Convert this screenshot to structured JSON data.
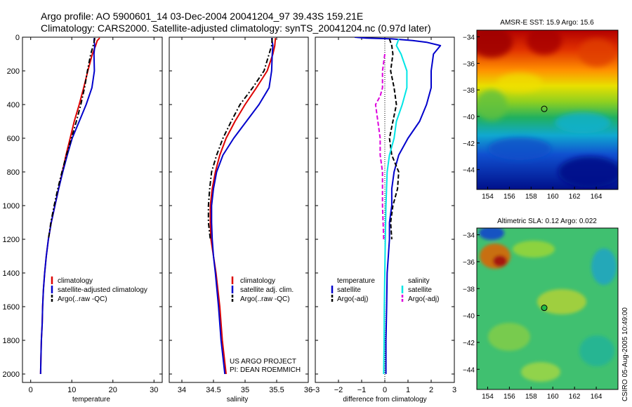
{
  "title_line1": "Argo profile: AO 5900601_14 03-Dec-2004 20041204_97 39.43S 159.21E",
  "title_line2": "Climatology: CARS2000. Satellite-adjusted climatology: synTS_20041204.nc (0.97d later)",
  "colors": {
    "climatology": "#dd0000",
    "satellite": "#0000cc",
    "argo": "#000000",
    "cyan": "#00e5e5",
    "magenta": "#dd00dd"
  },
  "chart_data": [
    {
      "type": "line",
      "xlabel": "temperature",
      "ylabel": "",
      "xlim": [
        -2,
        32
      ],
      "ylim": [
        0,
        2050
      ],
      "y_inverted": true,
      "xticks": [
        0,
        10,
        20,
        30
      ],
      "yticks": [
        0,
        200,
        400,
        600,
        800,
        1000,
        1200,
        1400,
        1600,
        1800,
        2000
      ],
      "legend": [
        "climatology",
        "satellite-adjusted climatology",
        "Argo(..raw -QC)"
      ],
      "series": [
        {
          "name": "climatology",
          "color": "#dd0000",
          "dash": "solid",
          "depth": [
            5,
            20,
            50,
            100,
            200,
            300,
            400,
            500,
            600,
            700,
            800,
            900,
            1000,
            1100,
            1200,
            1300,
            1400,
            1500,
            1600,
            1700,
            1800,
            1900,
            2000
          ],
          "values": [
            16.8,
            16.2,
            15.8,
            15.0,
            13.9,
            12.9,
            11.8,
            10.6,
            9.6,
            8.6,
            7.7,
            6.8,
            5.9,
            5.0,
            4.3,
            3.8,
            3.4,
            3.1,
            2.9,
            2.8,
            2.6,
            2.5,
            2.4
          ]
        },
        {
          "name": "satellite-adjusted climatology",
          "color": "#0000cc",
          "dash": "solid",
          "depth": [
            5,
            20,
            50,
            100,
            200,
            300,
            400,
            500,
            600,
            700,
            800,
            900,
            1000,
            1100,
            1200,
            1300,
            1400,
            1500,
            1600,
            1700,
            1800,
            1900,
            2000
          ],
          "values": [
            15.5,
            15.4,
            15.6,
            15.4,
            15.5,
            14.9,
            13.5,
            11.8,
            10.1,
            8.9,
            7.8,
            6.8,
            5.9,
            5.0,
            4.3,
            3.8,
            3.4,
            3.1,
            2.9,
            2.8,
            2.6,
            2.5,
            2.4
          ]
        },
        {
          "name": "Argo(..raw -QC)",
          "color": "#000000",
          "dash": "dashdot",
          "depth": [
            5,
            20,
            50,
            100,
            200,
            300,
            400,
            500,
            600,
            700,
            800,
            900,
            1000,
            1100,
            1200
          ],
          "values": [
            15.6,
            15.5,
            15.2,
            14.6,
            13.8,
            13.1,
            12.2,
            11.1,
            9.9,
            8.7,
            7.6,
            6.6,
            5.7,
            4.9,
            4.3
          ]
        }
      ]
    },
    {
      "type": "line",
      "xlabel": "salinity",
      "ylabel": "",
      "xlim": [
        33.8,
        36.0
      ],
      "ylim": [
        0,
        2050
      ],
      "y_inverted": true,
      "xticks": [
        34,
        34.5,
        35,
        35.5,
        36
      ],
      "legend": [
        "climatology",
        "satellite adj. clim.",
        "Argo(..raw -QC)"
      ],
      "annotations": [
        "US ARGO PROJECT",
        "PI: DEAN ROEMMICH"
      ],
      "series": [
        {
          "name": "climatology",
          "color": "#dd0000",
          "dash": "solid",
          "depth": [
            5,
            50,
            100,
            200,
            300,
            400,
            500,
            600,
            700,
            800,
            900,
            1000,
            1100,
            1200,
            1300,
            1400,
            1600,
            1800,
            2000
          ],
          "values": [
            35.48,
            35.47,
            35.44,
            35.35,
            35.18,
            35.0,
            34.84,
            34.7,
            34.6,
            34.53,
            34.48,
            34.45,
            34.45,
            34.46,
            34.5,
            34.54,
            34.6,
            34.64,
            34.7
          ]
        },
        {
          "name": "satellite adj. clim.",
          "color": "#0000cc",
          "dash": "solid",
          "depth": [
            5,
            50,
            100,
            200,
            300,
            400,
            500,
            600,
            700,
            800,
            900,
            1000,
            1100,
            1200,
            1300,
            1400,
            1600,
            1800,
            2000
          ],
          "values": [
            35.42,
            35.44,
            35.43,
            35.42,
            35.38,
            35.22,
            35.02,
            34.82,
            34.65,
            34.55,
            34.5,
            34.47,
            34.47,
            34.48,
            34.5,
            34.53,
            34.58,
            34.62,
            34.68
          ]
        },
        {
          "name": "Argo(..raw -QC)",
          "color": "#000000",
          "dash": "dashdot",
          "depth": [
            5,
            50,
            100,
            200,
            300,
            400,
            500,
            600,
            700,
            800,
            900,
            1000,
            1100,
            1200
          ],
          "values": [
            35.43,
            35.42,
            35.38,
            35.3,
            35.12,
            34.92,
            34.78,
            34.65,
            34.55,
            34.47,
            34.44,
            34.42,
            34.42,
            34.45
          ]
        }
      ]
    },
    {
      "type": "line",
      "xlabel": "difference from climatology",
      "ylabel": "",
      "xlim": [
        -3,
        3
      ],
      "ylim": [
        0,
        2050
      ],
      "y_inverted": true,
      "xticks": [
        -3,
        -2,
        -1,
        0,
        1,
        2,
        3
      ],
      "legend_temperature_header": "temperature",
      "legend_salinity_header": "salinity",
      "legend": [
        "satellite",
        "Argo(-adj)",
        "satellite",
        "Argo(-adj)"
      ],
      "series": [
        {
          "name": "temperature satellite",
          "color": "#0000cc",
          "dash": "solid",
          "depth": [
            0,
            5,
            10,
            20,
            30,
            50,
            100,
            200,
            300,
            400,
            500,
            600,
            700,
            800,
            900,
            1000,
            1100,
            1200,
            1300,
            1400,
            1600,
            1800,
            2000
          ],
          "values": [
            -1.3,
            -0.8,
            0.3,
            1.2,
            1.8,
            2.4,
            2.1,
            2.0,
            2.0,
            1.8,
            1.5,
            1.0,
            0.6,
            0.4,
            0.3,
            0.3,
            0.2,
            0.2,
            0.15,
            0.1,
            0.08,
            0.05,
            0.05
          ]
        },
        {
          "name": "temperature Argo(-adj)",
          "color": "#000000",
          "dash": "dashed",
          "depth": [
            10,
            50,
            100,
            200,
            300,
            400,
            500,
            600,
            700,
            800,
            900,
            1000,
            1100,
            1200
          ],
          "values": [
            0.2,
            0.3,
            0.35,
            0.25,
            0.4,
            0.5,
            0.35,
            0.2,
            0.3,
            0.6,
            0.55,
            0.35,
            0.25,
            0.3
          ]
        },
        {
          "name": "salinity satellite",
          "color": "#00e5e5",
          "dash": "solid",
          "depth": [
            10,
            50,
            100,
            200,
            300,
            400,
            500,
            600,
            700,
            800,
            1000,
            1200,
            1400,
            1600,
            1800,
            2000
          ],
          "values": [
            0.6,
            0.5,
            0.7,
            0.95,
            0.95,
            0.75,
            0.5,
            0.4,
            0.2,
            0.1,
            0.05,
            0.02,
            0.0,
            -0.02,
            -0.03,
            -0.05
          ]
        },
        {
          "name": "salinity Argo(-adj)",
          "color": "#dd00dd",
          "dash": "dashed",
          "depth": [
            100,
            200,
            300,
            350,
            400,
            500,
            600,
            700,
            800,
            1000,
            1200
          ],
          "values": [
            0.0,
            -0.1,
            -0.1,
            -0.2,
            -0.4,
            -0.3,
            -0.2,
            -0.2,
            -0.1,
            -0.1,
            -0.05
          ]
        }
      ]
    },
    {
      "type": "heatmap",
      "title": "AMSR-E SST: 15.9 Argo: 15.6",
      "xlim": [
        153,
        166
      ],
      "ylim": [
        -45.5,
        -33.5
      ],
      "xticks": [
        154,
        156,
        158,
        160,
        162,
        164
      ],
      "yticks": [
        -34,
        -36,
        -38,
        -40,
        -42,
        -44
      ],
      "marker": {
        "lon": 159.21,
        "lat": -39.43
      }
    },
    {
      "type": "heatmap",
      "title": "Altimetric SLA: 0.12 Argo: 0.022",
      "xlim": [
        153,
        166
      ],
      "ylim": [
        -45.5,
        -33.5
      ],
      "xticks": [
        154,
        156,
        158,
        160,
        162,
        164
      ],
      "yticks": [
        -34,
        -36,
        -38,
        -40,
        -42,
        -44
      ],
      "marker": {
        "lon": 159.21,
        "lat": -39.43
      }
    }
  ],
  "side_label": "CSIRO 05-Aug-2005 10:49:00"
}
